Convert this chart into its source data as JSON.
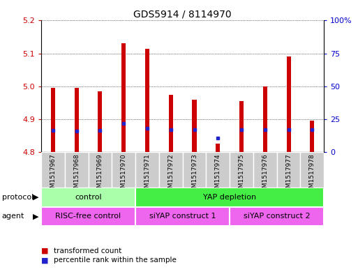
{
  "title": "GDS5914 / 8114970",
  "samples": [
    "GSM1517967",
    "GSM1517968",
    "GSM1517969",
    "GSM1517970",
    "GSM1517971",
    "GSM1517972",
    "GSM1517973",
    "GSM1517974",
    "GSM1517975",
    "GSM1517976",
    "GSM1517977",
    "GSM1517978"
  ],
  "bar_bottom": 4.8,
  "bar_tops": [
    4.995,
    4.995,
    4.985,
    5.13,
    5.115,
    4.975,
    4.96,
    4.825,
    4.955,
    5.0,
    5.09,
    4.895
  ],
  "blue_dots": [
    4.865,
    4.863,
    4.865,
    4.888,
    4.873,
    4.868,
    4.868,
    4.842,
    4.868,
    4.868,
    4.868,
    4.868
  ],
  "ylim": [
    4.8,
    5.2
  ],
  "yticks_left": [
    4.8,
    4.9,
    5.0,
    5.1,
    5.2
  ],
  "yright_label_vals": [
    0,
    25,
    50,
    75,
    100
  ],
  "yright_positions": [
    4.8,
    4.9,
    5.0,
    5.1,
    5.2
  ],
  "bar_color": "#cc0000",
  "dot_color": "#2222cc",
  "plot_bg_color": "#ffffff",
  "sample_bg_color": "#cccccc",
  "protocol_colors": [
    "#aaffaa",
    "#44ee44"
  ],
  "protocol_labels": [
    "control",
    "YAP depletion"
  ],
  "protocol_starts": [
    0,
    4
  ],
  "protocol_ends": [
    4,
    12
  ],
  "agent_color": "#ee66ee",
  "agent_labels": [
    "RISC-free control",
    "siYAP construct 1",
    "siYAP construct 2"
  ],
  "agent_starts": [
    0,
    4,
    8
  ],
  "agent_ends": [
    4,
    8,
    12
  ],
  "left_label_color": "#cc0000",
  "right_label_color": "#0000cc",
  "title_fontsize": 10,
  "tick_fontsize": 8,
  "sample_fontsize": 6.5,
  "group_fontsize": 8,
  "legend_items": [
    "transformed count",
    "percentile rank within the sample"
  ],
  "bar_width": 0.18
}
